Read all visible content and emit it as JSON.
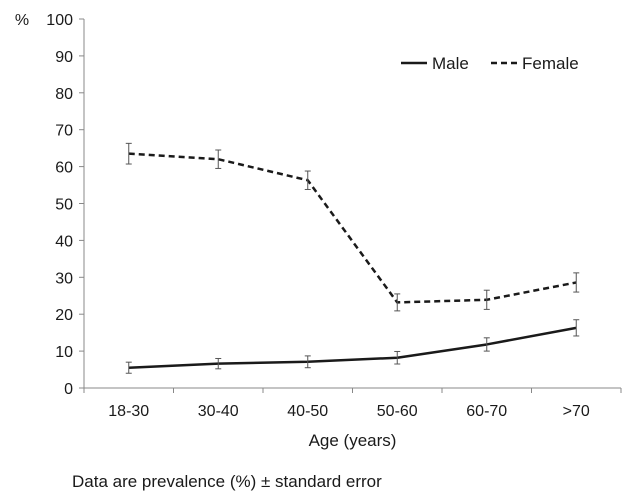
{
  "chart_data": {
    "type": "line",
    "ylabel": "%",
    "xlabel": "Age (years)",
    "categories": [
      "18-30",
      "30-40",
      "40-50",
      "50-60",
      "60-70",
      ">70"
    ],
    "ylim": [
      0,
      100
    ],
    "yticks": [
      0,
      10,
      20,
      30,
      40,
      50,
      60,
      70,
      80,
      90,
      100
    ],
    "grid": false,
    "legend_position": "top-right",
    "series": [
      {
        "name": "Male",
        "style": "solid",
        "values": [
          5.5,
          6.6,
          7.1,
          8.2,
          11.8,
          16.3
        ],
        "errors": [
          1.5,
          1.4,
          1.6,
          1.7,
          1.8,
          2.2
        ]
      },
      {
        "name": "Female",
        "style": "dashed",
        "values": [
          63.5,
          62.0,
          56.3,
          23.2,
          23.9,
          28.6
        ],
        "errors": [
          2.8,
          2.5,
          2.5,
          2.3,
          2.6,
          2.6
        ]
      }
    ],
    "colors": {
      "line": "#1a1a1a",
      "error_bar": "#555555",
      "axis": "#888888"
    }
  },
  "footnote": "Data are prevalence (%) ± standard error"
}
